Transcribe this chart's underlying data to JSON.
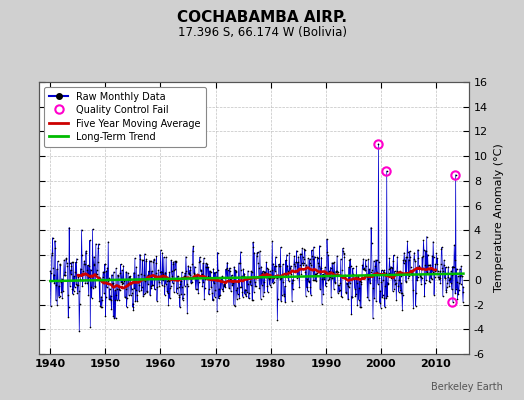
{
  "title": "COCHABAMBA AIRP.",
  "subtitle": "17.396 S, 66.174 W (Bolivia)",
  "ylabel": "Temperature Anomaly (°C)",
  "watermark": "Berkeley Earth",
  "xlim": [
    1938,
    2016
  ],
  "ylim": [
    -6,
    16
  ],
  "yticks": [
    -6,
    -4,
    -2,
    0,
    2,
    4,
    6,
    8,
    10,
    12,
    14,
    16
  ],
  "xticks": [
    1940,
    1950,
    1960,
    1970,
    1980,
    1990,
    2000,
    2010
  ],
  "fig_bg_color": "#d0d0d0",
  "plot_bg_color": "#ffffff",
  "raw_line_color": "#0000cc",
  "raw_dot_color": "#000000",
  "qc_fail_color": "#ff00cc",
  "moving_avg_color": "#cc0000",
  "trend_color": "#00bb00",
  "grid_color": "#bbbbbb",
  "seed": 17,
  "n_months": 900,
  "start_year": 1940.0,
  "qc_fail_times": [
    1999.5,
    2001.0,
    2013.5
  ],
  "qc_fail_values": [
    11.0,
    8.8,
    8.5
  ],
  "qc_fail_neg_times": [
    2013.0
  ],
  "qc_fail_neg_values": [
    -1.8
  ],
  "moving_avg_shape": {
    "x": [
      1940,
      1945,
      1952,
      1962,
      1970,
      1978,
      1985,
      1992,
      1998,
      2005,
      2012,
      2015
    ],
    "y": [
      -0.6,
      -0.5,
      -0.2,
      0.3,
      1.0,
      0.8,
      0.2,
      0.2,
      0.6,
      0.7,
      0.6,
      0.6
    ]
  },
  "trend_shape": {
    "x": [
      1940,
      2015
    ],
    "y": [
      -0.1,
      0.5
    ]
  }
}
